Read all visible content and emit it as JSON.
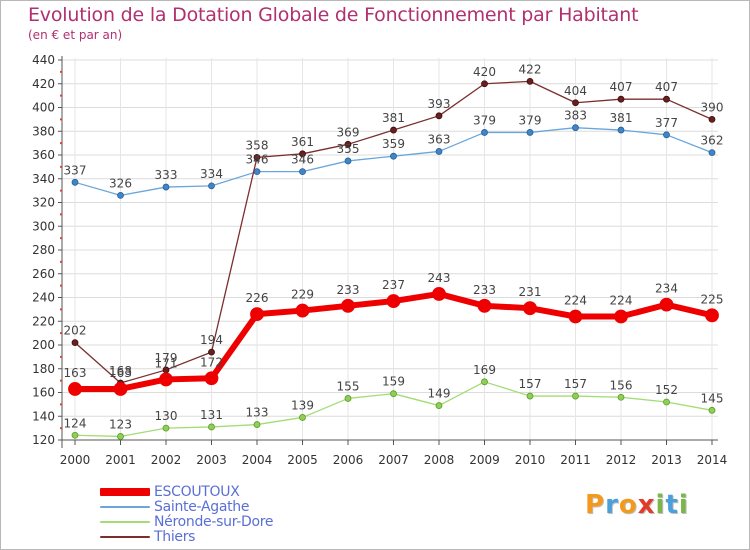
{
  "header": {
    "title": "Evolution de la Dotation Globale de Fonctionnement par Habitant",
    "subtitle": "(en € et par an)"
  },
  "logo": {
    "text": "Proxiti",
    "letters": [
      {
        "ch": "P",
        "color": "#f39a1e"
      },
      {
        "ch": "r",
        "color": "#4aa0d8"
      },
      {
        "ch": "o",
        "color": "#f39a1e"
      },
      {
        "ch": "x",
        "color": "#e23b2a"
      },
      {
        "ch": "i",
        "color": "#7ab648"
      },
      {
        "ch": "t",
        "color": "#4aa0d8"
      },
      {
        "ch": "i",
        "color": "#7ab648"
      }
    ]
  },
  "chart_data": {
    "type": "line",
    "title": "Evolution de la Dotation Globale de Fonctionnement par Habitant",
    "subtitle": "(en € et par an)",
    "xlabel": "",
    "ylabel": "",
    "x": [
      "2000",
      "2001",
      "2002",
      "2003",
      "2004",
      "2005",
      "2006",
      "2007",
      "2008",
      "2009",
      "2010",
      "2011",
      "2012",
      "2013",
      "2014"
    ],
    "ylim": [
      120,
      440
    ],
    "yticks": [
      120,
      140,
      160,
      180,
      200,
      220,
      240,
      260,
      280,
      300,
      320,
      340,
      360,
      380,
      400,
      420,
      440
    ],
    "grid": true,
    "legend_position": "bottom-left",
    "series": [
      {
        "name": "ESCOUTOUX",
        "color": "#ee0000",
        "values": [
          163,
          163,
          171,
          172,
          226,
          229,
          233,
          237,
          243,
          233,
          231,
          224,
          224,
          234,
          225
        ]
      },
      {
        "name": "Sainte-Agathe",
        "color": "#5fa0d8",
        "values": [
          337,
          326,
          333,
          334,
          346,
          346,
          355,
          359,
          363,
          379,
          379,
          383,
          381,
          377,
          362
        ]
      },
      {
        "name": "Néronde-sur-Dore",
        "color": "#99d868",
        "values": [
          124,
          123,
          130,
          131,
          133,
          139,
          155,
          159,
          149,
          169,
          157,
          157,
          156,
          152,
          145
        ]
      },
      {
        "name": "Thiers",
        "color": "#7a2e2e",
        "values": [
          202,
          168,
          179,
          194,
          358,
          361,
          369,
          381,
          393,
          420,
          422,
          404,
          407,
          407,
          390
        ]
      }
    ]
  }
}
